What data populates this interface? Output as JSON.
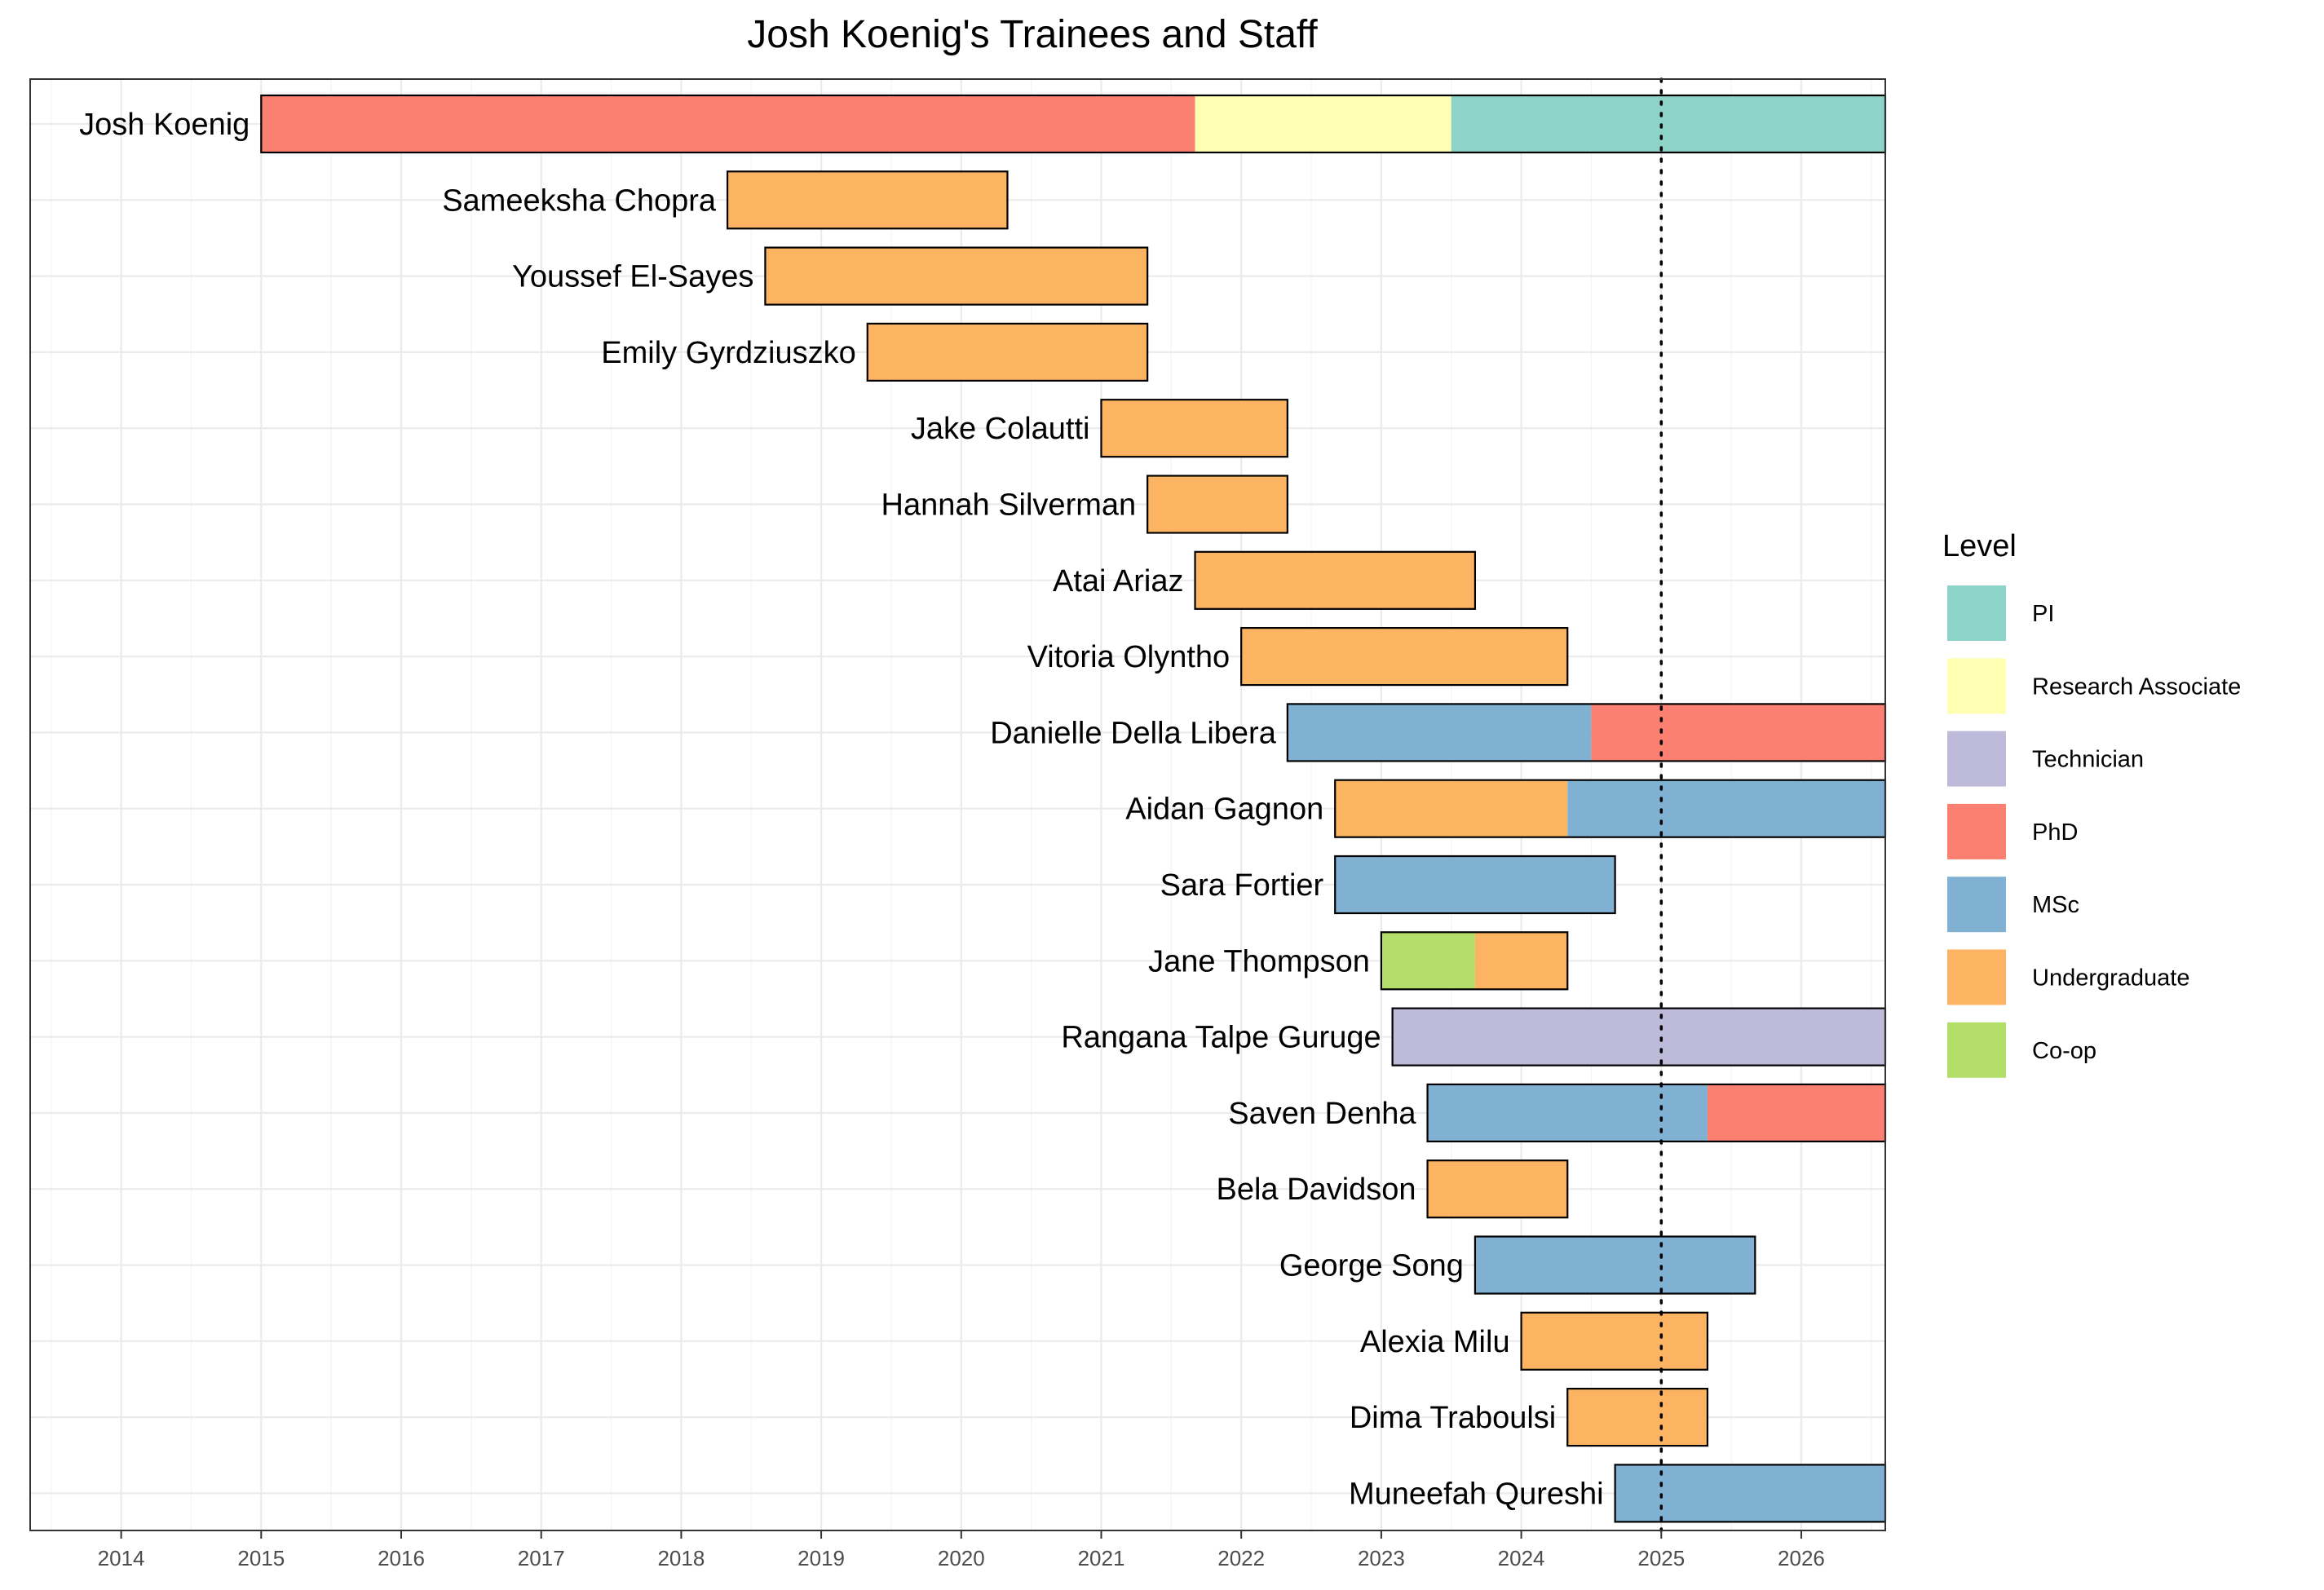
{
  "chart_data": {
    "type": "bar",
    "orientation": "horizontal-timeline",
    "title": "Josh Koenig's Trainees and Staff",
    "xlabel": "",
    "ylabel": "",
    "xlim": [
      2013.35,
      2026.6
    ],
    "x_ticks": [
      2014,
      2015,
      2016,
      2017,
      2018,
      2019,
      2020,
      2021,
      2022,
      2023,
      2024,
      2025,
      2026
    ],
    "grid": true,
    "reference_line": {
      "x": 2025.0,
      "style": "dotted"
    },
    "legend": {
      "title": "Level",
      "position": "right",
      "entries": [
        {
          "name": "PI",
          "color": "#8DD3C7"
        },
        {
          "name": "Research Associate",
          "color": "#FFFFB3"
        },
        {
          "name": "Technician",
          "color": "#BEBADA"
        },
        {
          "name": "PhD",
          "color": "#FB8072"
        },
        {
          "name": "MSc",
          "color": "#80B1D3"
        },
        {
          "name": "Undergraduate",
          "color": "#FDB462"
        },
        {
          "name": "Co-op",
          "color": "#B3DE69"
        }
      ]
    },
    "people": [
      {
        "name": "Josh Koenig",
        "segments": [
          {
            "level": "PhD",
            "start": 2015.0,
            "end": 2021.67
          },
          {
            "level": "Research Associate",
            "start": 2021.67,
            "end": 2023.5
          },
          {
            "level": "PI",
            "start": 2023.5,
            "end": 2026.6
          }
        ]
      },
      {
        "name": "Sameeksha Chopra",
        "segments": [
          {
            "level": "Undergraduate",
            "start": 2018.33,
            "end": 2020.33
          }
        ]
      },
      {
        "name": "Youssef El-Sayes",
        "segments": [
          {
            "level": "Undergraduate",
            "start": 2018.6,
            "end": 2021.33
          }
        ]
      },
      {
        "name": "Emily Gyrdziuszko",
        "segments": [
          {
            "level": "Undergraduate",
            "start": 2019.33,
            "end": 2021.33
          }
        ]
      },
      {
        "name": "Jake Colautti",
        "segments": [
          {
            "level": "Undergraduate",
            "start": 2021.0,
            "end": 2022.33
          }
        ]
      },
      {
        "name": "Hannah Silverman",
        "segments": [
          {
            "level": "Undergraduate",
            "start": 2021.33,
            "end": 2022.33
          }
        ]
      },
      {
        "name": "Atai Ariaz",
        "segments": [
          {
            "level": "Undergraduate",
            "start": 2021.67,
            "end": 2023.67
          }
        ]
      },
      {
        "name": "Vitoria Olyntho",
        "segments": [
          {
            "level": "Undergraduate",
            "start": 2022.0,
            "end": 2024.33
          }
        ]
      },
      {
        "name": "Danielle Della Libera",
        "segments": [
          {
            "level": "MSc",
            "start": 2022.33,
            "end": 2024.5
          },
          {
            "level": "PhD",
            "start": 2024.5,
            "end": 2026.6
          }
        ]
      },
      {
        "name": "Aidan Gagnon",
        "segments": [
          {
            "level": "Undergraduate",
            "start": 2022.67,
            "end": 2024.33
          },
          {
            "level": "MSc",
            "start": 2024.33,
            "end": 2026.6
          }
        ]
      },
      {
        "name": "Sara Fortier",
        "segments": [
          {
            "level": "MSc",
            "start": 2022.67,
            "end": 2024.67
          }
        ]
      },
      {
        "name": "Jane Thompson",
        "segments": [
          {
            "level": "Co-op",
            "start": 2023.0,
            "end": 2023.67
          },
          {
            "level": "Undergraduate",
            "start": 2023.67,
            "end": 2024.33
          }
        ]
      },
      {
        "name": "Rangana Talpe Guruge",
        "segments": [
          {
            "level": "Technician",
            "start": 2023.08,
            "end": 2026.6
          }
        ]
      },
      {
        "name": "Saven Denha",
        "segments": [
          {
            "level": "MSc",
            "start": 2023.33,
            "end": 2025.33
          },
          {
            "level": "PhD",
            "start": 2025.33,
            "end": 2026.6
          }
        ]
      },
      {
        "name": "Bela Davidson",
        "segments": [
          {
            "level": "Undergraduate",
            "start": 2023.33,
            "end": 2024.33
          }
        ]
      },
      {
        "name": "George Song",
        "segments": [
          {
            "level": "MSc",
            "start": 2023.67,
            "end": 2025.67
          }
        ]
      },
      {
        "name": "Alexia Milu",
        "segments": [
          {
            "level": "Undergraduate",
            "start": 2024.0,
            "end": 2025.33
          }
        ]
      },
      {
        "name": "Dima Traboulsi",
        "segments": [
          {
            "level": "Undergraduate",
            "start": 2024.33,
            "end": 2025.33
          }
        ]
      },
      {
        "name": "Muneefah Qureshi",
        "segments": [
          {
            "level": "MSc",
            "start": 2024.67,
            "end": 2026.6
          }
        ]
      }
    ]
  }
}
